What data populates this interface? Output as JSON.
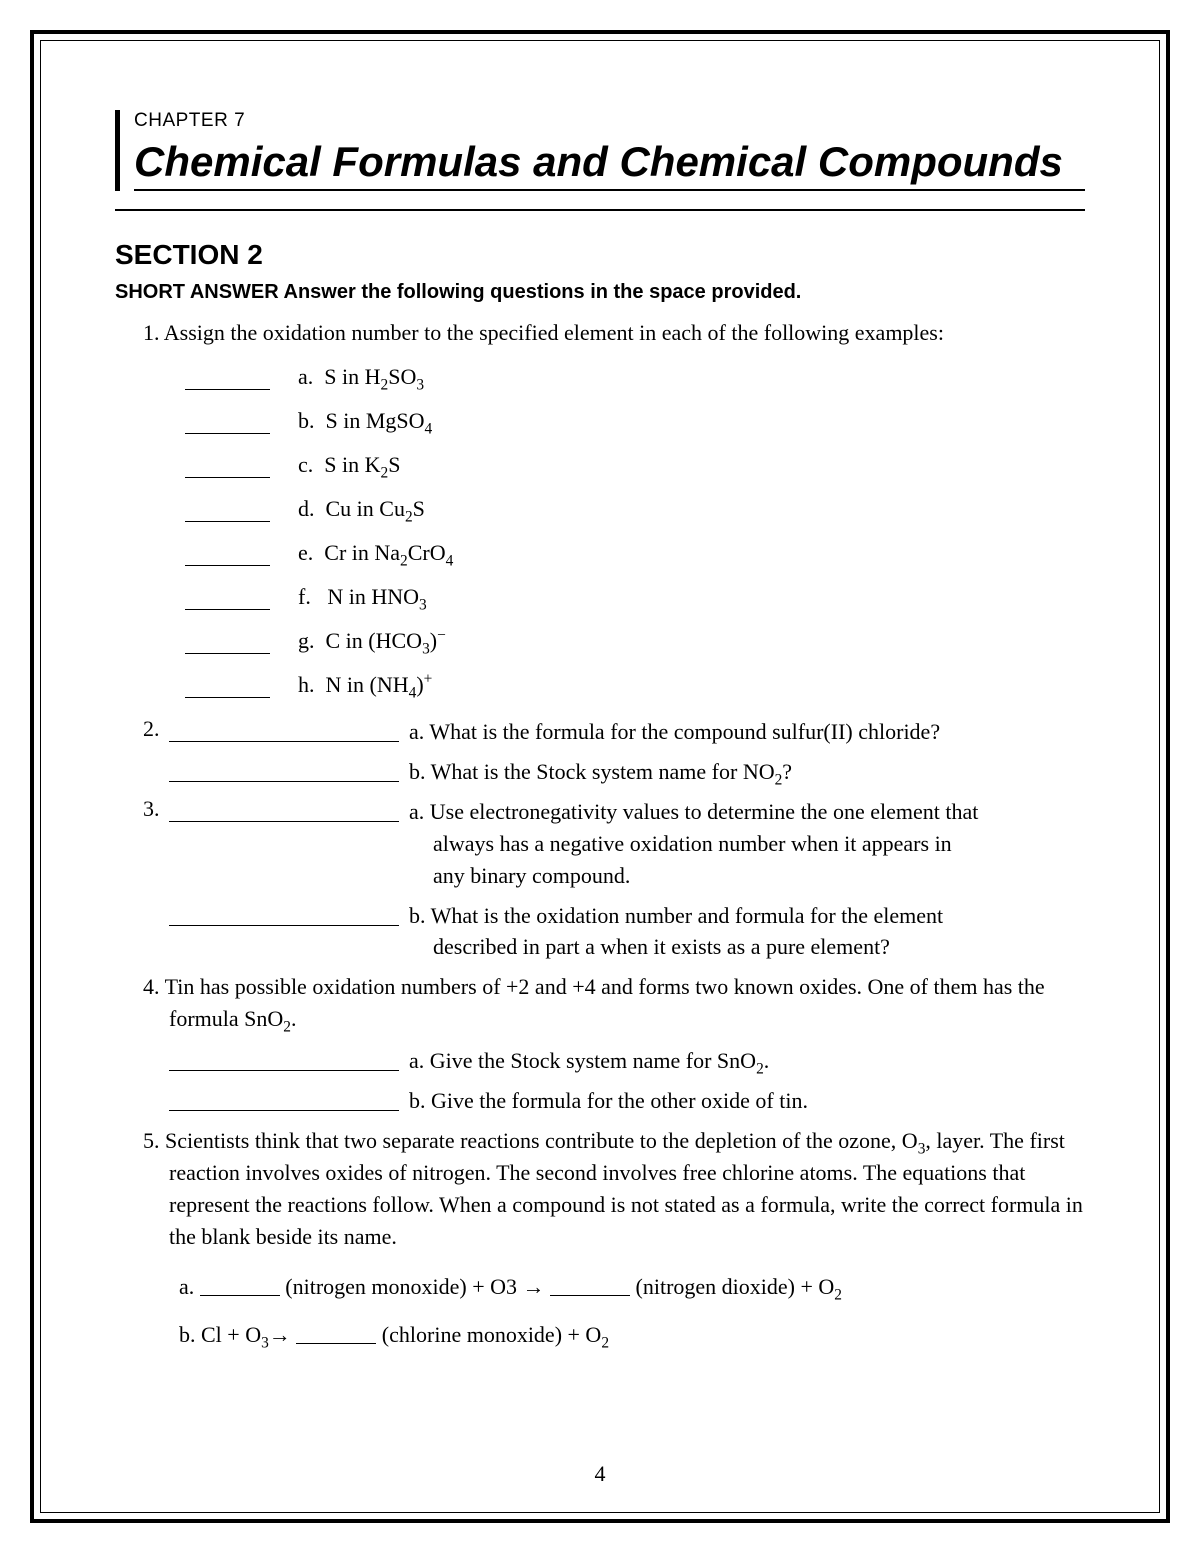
{
  "chapter": {
    "label": "CHAPTER 7",
    "title": "Chemical Formulas and Chemical Compounds"
  },
  "section": {
    "label": "SECTION 2",
    "instruction": "SHORT ANSWER Answer the following questions in the space provided."
  },
  "q1": {
    "num": "1.",
    "intro": "Assign the oxidation number to the specified element in each of the following examples:",
    "items": [
      {
        "letter": "a.",
        "pre": "S in H",
        "sub1": "2",
        "mid": "SO",
        "sub2": "3"
      },
      {
        "letter": "b.",
        "pre": "S in MgSO",
        "sub1": "4",
        "mid": "",
        "sub2": ""
      },
      {
        "letter": "c.",
        "pre": "S in K",
        "sub1": "2",
        "mid": "S",
        "sub2": ""
      },
      {
        "letter": "d.",
        "pre": "Cu in Cu",
        "sub1": "2",
        "mid": "S",
        "sub2": ""
      },
      {
        "letter": "e.",
        "pre": "Cr in Na",
        "sub1": "2",
        "mid": "CrO",
        "sub2": "4"
      },
      {
        "letter": "f.",
        "pre": "N in HNO",
        "sub1": "3",
        "mid": "",
        "sub2": ""
      },
      {
        "letter": "g.",
        "pre": "C in (HCO",
        "sub1": "3",
        "mid": ")",
        "sup": "−"
      },
      {
        "letter": "h.",
        "pre": "N in (NH",
        "sub1": "4",
        "mid": ")",
        "sup": "+"
      }
    ]
  },
  "q2": {
    "num": "2.",
    "a": "a. What is the formula for the compound sulfur(II) chloride?",
    "b_pre": "b. What is the Stock system name for NO",
    "b_sub": "2",
    "b_post": "?"
  },
  "q3": {
    "num": "3.",
    "a": "a. Use electronegativity values to determine the one element that always has a negative oxidation number when it appears in any binary compound.",
    "b": "b. What is the oxidation number and formula for the element described in part a when it exists as a pure element?"
  },
  "q4": {
    "num": "4.",
    "intro_pre": "Tin has possible oxidation numbers of +2 and +4 and forms two known oxides. One of them has the formula SnO",
    "intro_sub": "2",
    "intro_post": ".",
    "a_pre": "a. Give the Stock system name for SnO",
    "a_sub": "2",
    "a_post": ".",
    "b": "b. Give the formula for the other oxide of tin."
  },
  "q5": {
    "num": "5.",
    "intro_pre": "Scientists think that two separate reactions contribute to the depletion of the ozone, O",
    "intro_sub": "3",
    "intro_post": ", layer. The first reaction involves oxides of nitrogen. The second involves free chlorine atoms. The equations that represent the reactions follow. When a compound is not stated as a formula, write the correct formula in the blank beside its name.",
    "eq_a": {
      "label": "a.",
      "seg1": " (nitrogen monoxide) + O3 → ",
      "seg2": " (nitrogen dioxide) + O",
      "sub": "2"
    },
    "eq_b": {
      "label": "b.",
      "seg1_pre": " Cl + O",
      "seg1_sub": "3",
      "seg1_post": "→ ",
      "seg2": " (chlorine monoxide) + O",
      "sub": "2"
    }
  },
  "page_number": "4"
}
